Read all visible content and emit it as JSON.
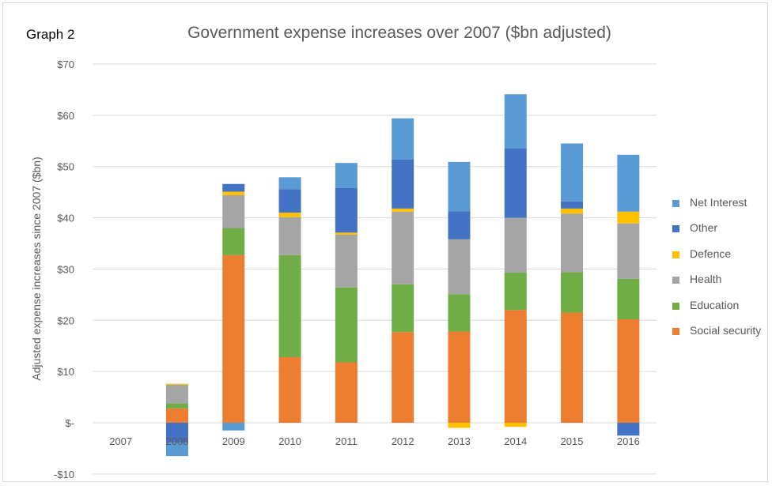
{
  "graph_tag": "Graph 2",
  "colors": {
    "Social security": "#ED7D31",
    "Education": "#70AD47",
    "Health": "#A5A5A5",
    "Defence": "#FFC000",
    "Other": "#4472C4",
    "Net Interest": "#5B9BD5",
    "grid": "#D9D9D9",
    "text": "#595959"
  },
  "chart_data": {
    "type": "bar",
    "stacked": true,
    "title": "Government expense increases over 2007 ($bn adjusted)",
    "xlabel": "",
    "ylabel": "Adjusted expense increases since 2007 ($bn)",
    "ylim": [
      -10,
      70
    ],
    "yticks": [
      -10,
      0,
      10,
      20,
      30,
      40,
      50,
      60,
      70
    ],
    "ytick_labels": [
      "-$10",
      "$-",
      "$10",
      "$20",
      "$30",
      "$40",
      "$50",
      "$60",
      "$70"
    ],
    "grid": true,
    "legend_position": "right",
    "categories": [
      "2007",
      "2008",
      "2009",
      "2010",
      "2011",
      "2012",
      "2013",
      "2014",
      "2015",
      "2016"
    ],
    "series": [
      {
        "name": "Social security",
        "values": [
          0,
          2.8,
          32.7,
          12.8,
          11.8,
          17.7,
          17.8,
          22.0,
          21.5,
          20.2
        ]
      },
      {
        "name": "Education",
        "values": [
          0,
          1.0,
          5.3,
          19.9,
          14.6,
          9.3,
          7.3,
          7.3,
          7.9,
          7.9
        ]
      },
      {
        "name": "Health",
        "values": [
          0,
          3.6,
          6.4,
          7.4,
          10.3,
          14.2,
          10.7,
          10.7,
          11.4,
          10.8
        ]
      },
      {
        "name": "Defence",
        "values": [
          0,
          0.2,
          0.7,
          0.9,
          0.4,
          0.6,
          -1.0,
          -0.8,
          1.0,
          2.3
        ]
      },
      {
        "name": "Other",
        "values": [
          0,
          -3.9,
          1.5,
          4.6,
          8.7,
          9.6,
          5.5,
          13.5,
          1.4,
          -2.5
        ]
      },
      {
        "name": "Net Interest",
        "values": [
          0,
          -2.6,
          -1.5,
          2.3,
          4.9,
          8.0,
          9.6,
          10.6,
          11.3,
          11.1
        ]
      }
    ],
    "legend_order": [
      "Net Interest",
      "Other",
      "Defence",
      "Health",
      "Education",
      "Social security"
    ]
  }
}
